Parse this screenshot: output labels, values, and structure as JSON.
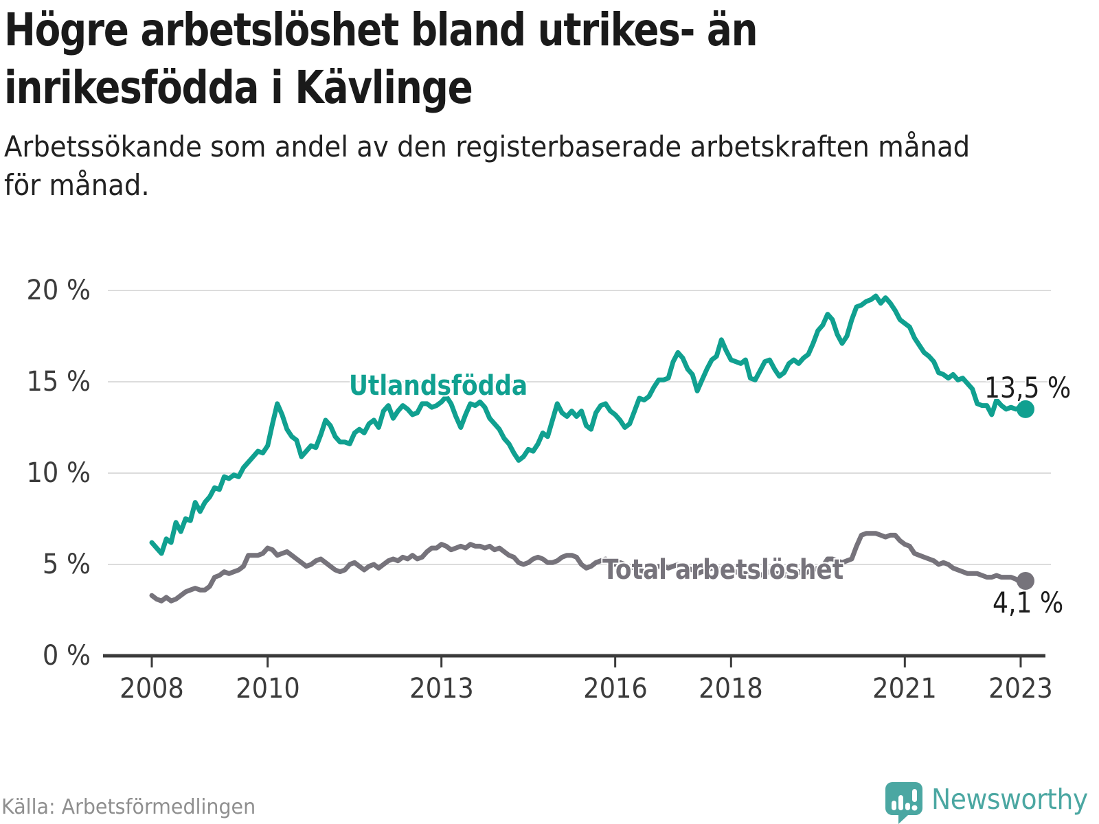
{
  "title": "Högre arbetslöshet bland utrikes- än\ninrikesfödda i Kävlinge",
  "subtitle": "Arbetssökande som andel av den registerbaserade arbetskraften månad\nför månad.",
  "source": "Källa: Arbetsförmedlingen",
  "brand": {
    "name": "Newsworthy",
    "icon": "bar-chart-speech-bubble-icon",
    "color": "#4ba7a2"
  },
  "colors": {
    "foreign_born_line": "#10a090",
    "total_line": "#76737b",
    "grid": "#dcdcdc",
    "axis": "#3b3b3b",
    "heading_text": "#1a1a1a",
    "muted_text": "#8f8f8f"
  },
  "chart_data": {
    "type": "line",
    "unit": "%",
    "decimal_separator": ",",
    "frequency": "monthly",
    "x_range": [
      "2008-01",
      "2023-02"
    ],
    "ylim": [
      0,
      20
    ],
    "grid": "horizontal",
    "legend_position": "inline-labels",
    "y_ticks": [
      {
        "label": "20 %",
        "value": 20
      },
      {
        "label": "15 %",
        "value": 15
      },
      {
        "label": "10 %",
        "value": 10
      },
      {
        "label": "5 %",
        "value": 5
      },
      {
        "label": "0 %",
        "value": 0
      }
    ],
    "x_ticks": [
      {
        "label": "2008",
        "month": 0
      },
      {
        "label": "2010",
        "month": 24
      },
      {
        "label": "2013",
        "month": 60
      },
      {
        "label": "2016",
        "month": 96
      },
      {
        "label": "2018",
        "month": 120
      },
      {
        "label": "2021",
        "month": 156
      },
      {
        "label": "2023",
        "month": 180
      }
    ],
    "series": [
      {
        "name": "Utlandsfödda",
        "color": "#10a090",
        "end_label": "13,5 %",
        "end_value": 13.5,
        "values": [
          6.2,
          5.9,
          5.6,
          6.4,
          6.2,
          7.3,
          6.8,
          7.5,
          7.4,
          8.4,
          7.9,
          8.4,
          8.7,
          9.2,
          9.1,
          9.8,
          9.7,
          9.9,
          9.8,
          10.3,
          10.6,
          10.9,
          11.2,
          11.1,
          11.5,
          12.7,
          13.8,
          13.2,
          12.4,
          12.0,
          11.8,
          10.9,
          11.2,
          11.5,
          11.4,
          12.1,
          12.9,
          12.6,
          12.0,
          11.7,
          11.7,
          11.6,
          12.2,
          12.4,
          12.2,
          12.7,
          12.9,
          12.5,
          13.4,
          13.7,
          13.0,
          13.4,
          13.7,
          13.5,
          13.2,
          13.3,
          13.8,
          13.8,
          13.6,
          13.7,
          13.9,
          14.2,
          13.8,
          13.1,
          12.5,
          13.2,
          13.8,
          13.7,
          13.9,
          13.6,
          13.0,
          12.7,
          12.4,
          11.9,
          11.6,
          11.1,
          10.7,
          10.9,
          11.3,
          11.2,
          11.6,
          12.2,
          12.0,
          12.9,
          13.8,
          13.3,
          13.1,
          13.4,
          13.1,
          13.4,
          12.6,
          12.4,
          13.3,
          13.7,
          13.8,
          13.4,
          13.2,
          12.9,
          12.5,
          12.7,
          13.4,
          14.1,
          14.0,
          14.2,
          14.7,
          15.1,
          15.1,
          15.2,
          16.1,
          16.6,
          16.3,
          15.7,
          15.4,
          14.5,
          15.1,
          15.7,
          16.2,
          16.4,
          17.3,
          16.7,
          16.2,
          16.1,
          16.0,
          16.2,
          15.2,
          15.1,
          15.6,
          16.1,
          16.2,
          15.7,
          15.3,
          15.5,
          16.0,
          16.2,
          16.0,
          16.3,
          16.5,
          17.1,
          17.8,
          18.1,
          18.7,
          18.4,
          17.6,
          17.1,
          17.5,
          18.4,
          19.1,
          19.2,
          19.4,
          19.5,
          19.7,
          19.3,
          19.6,
          19.3,
          18.9,
          18.4,
          18.2,
          18.0,
          17.4,
          17.0,
          16.6,
          16.4,
          16.1,
          15.5,
          15.4,
          15.2,
          15.4,
          15.1,
          15.2,
          14.9,
          14.6,
          13.8,
          13.7,
          13.7,
          13.2,
          14.0,
          13.7,
          13.5,
          13.6,
          13.5,
          13.6,
          13.5
        ]
      },
      {
        "name": "Total arbetslöshet",
        "color": "#76737b",
        "end_label": "4,1 %",
        "end_value": 4.1,
        "values": [
          3.3,
          3.1,
          3.0,
          3.2,
          3.0,
          3.1,
          3.3,
          3.5,
          3.6,
          3.7,
          3.6,
          3.6,
          3.8,
          4.3,
          4.4,
          4.6,
          4.5,
          4.6,
          4.7,
          4.9,
          5.5,
          5.5,
          5.5,
          5.6,
          5.9,
          5.8,
          5.5,
          5.6,
          5.7,
          5.5,
          5.3,
          5.1,
          4.9,
          5.0,
          5.2,
          5.3,
          5.1,
          4.9,
          4.7,
          4.6,
          4.7,
          5.0,
          5.1,
          4.9,
          4.7,
          4.9,
          5.0,
          4.8,
          5.0,
          5.2,
          5.3,
          5.2,
          5.4,
          5.3,
          5.5,
          5.3,
          5.4,
          5.7,
          5.9,
          5.9,
          6.1,
          6.0,
          5.8,
          5.9,
          6.0,
          5.9,
          6.1,
          6.0,
          6.0,
          5.9,
          6.0,
          5.8,
          5.9,
          5.7,
          5.5,
          5.4,
          5.1,
          5.0,
          5.1,
          5.3,
          5.4,
          5.3,
          5.1,
          5.1,
          5.2,
          5.4,
          5.5,
          5.5,
          5.4,
          5.0,
          4.8,
          4.9,
          5.1,
          5.2,
          5.3,
          5.1,
          5.0,
          5.1,
          5.0,
          4.9,
          4.8,
          4.7,
          4.6,
          4.7,
          4.8,
          4.9,
          4.9,
          4.8,
          4.9,
          5.0,
          4.9,
          4.8,
          4.7,
          4.5,
          4.6,
          4.7,
          4.8,
          4.8,
          4.7,
          4.6,
          4.6,
          4.6,
          4.5,
          4.5,
          4.4,
          4.4,
          4.4,
          4.5,
          4.6,
          4.5,
          4.5,
          4.4,
          4.5,
          4.6,
          4.6,
          4.5,
          4.6,
          4.7,
          4.8,
          4.9,
          5.3,
          5.3,
          5.2,
          5.1,
          5.2,
          5.3,
          6.0,
          6.6,
          6.7,
          6.7,
          6.7,
          6.6,
          6.5,
          6.6,
          6.6,
          6.3,
          6.1,
          6.0,
          5.6,
          5.5,
          5.4,
          5.3,
          5.2,
          5.0,
          5.1,
          5.0,
          4.8,
          4.7,
          4.6,
          4.5,
          4.5,
          4.5,
          4.4,
          4.3,
          4.3,
          4.4,
          4.3,
          4.3,
          4.3,
          4.2,
          4.0,
          4.1
        ]
      }
    ]
  }
}
